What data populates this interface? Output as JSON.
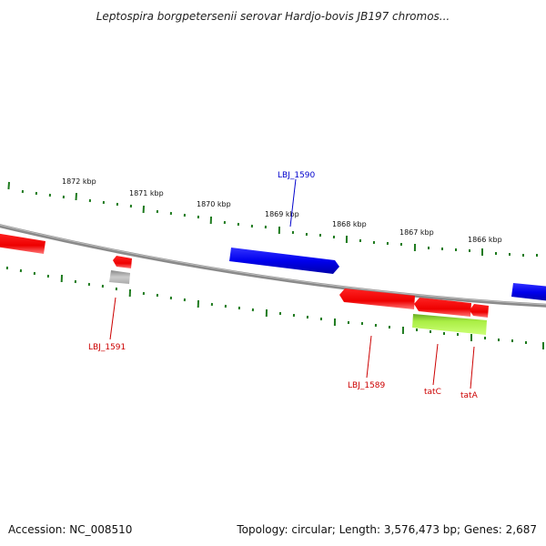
{
  "title": "Leptospira borgpetersenii serovar Hardjo-bovis JB197 chromos...",
  "footer": {
    "accession": "Accession: NC_008510",
    "summary": "Topology: circular; Length: 3,576,473 bp; Genes: 2,687"
  },
  "colors": {
    "backbone": "#8a8a8a",
    "scale_ticks": "#1d7a1d",
    "forward_gene": "#0000ee",
    "reverse_gene": "#ee0000",
    "pseudo_gene": "#bbbbbb",
    "highlight_gene": "#99dd33",
    "label_blue": "#0000cc",
    "label_red": "#cc0000"
  },
  "scale": {
    "unit": "kbp",
    "labels": [
      "1872 kbp",
      "1871 kbp",
      "1870 kbp",
      "1869 kbp",
      "1868 kbp",
      "1867 kbp",
      "1866 kbp"
    ]
  },
  "genes": [
    {
      "name": "LBJ_1590",
      "strand": "forward"
    },
    {
      "name": "LBJ_1591",
      "strand": "reverse"
    },
    {
      "name": "LBJ_1589",
      "strand": "reverse"
    },
    {
      "name": "tatC",
      "strand": "reverse"
    },
    {
      "name": "tatA",
      "strand": "reverse"
    }
  ]
}
